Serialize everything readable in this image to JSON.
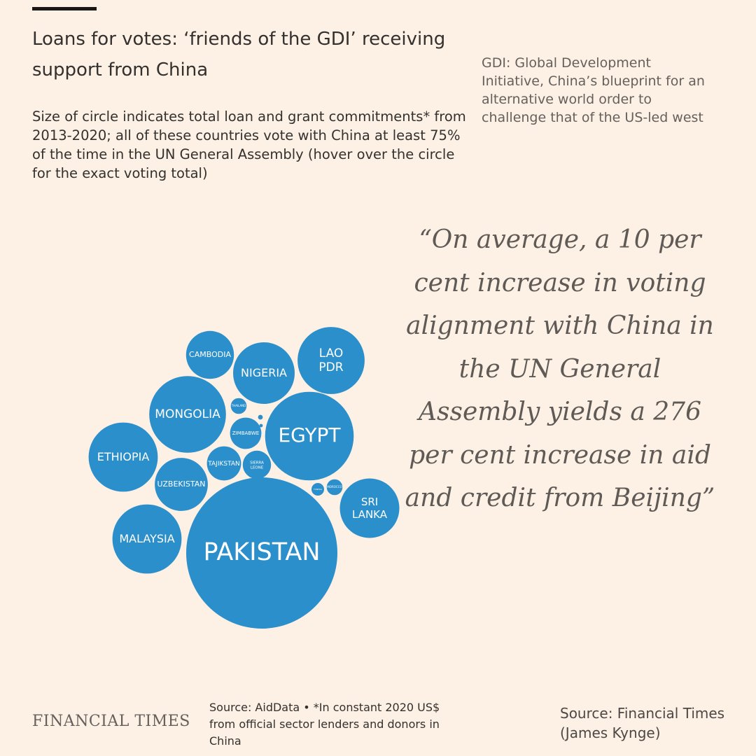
{
  "header": {
    "title": "Loans for votes: ‘friends of the GDI’ receiving support from China",
    "subtitle": "Size of circle indicates total loan and grant commitments* from 2013-2020; all of these countries vote with China at least 75% of the time in the UN General Assembly (hover over the circle for the exact voting total)"
  },
  "gdi_note": "GDI: Global Development Initiative, China’s blueprint for an alternative world order to challenge that of the US-led west",
  "quote": "“On average, a 10 per cent increase in voting alignment with China in the UN General Assembly yields a 276 per cent increase in aid and credit from Beijing”",
  "footer": {
    "logo": "FINANCIAL TIMES",
    "chart_source": "Source: AidData • *In constant 2020 US$ from official sector lenders and donors in China",
    "credit": "Source: Financial Times (James Kynge)"
  },
  "colors": {
    "bubble": "#2b8fcb",
    "background": "#fdf1e5"
  },
  "chart_data": {
    "type": "bubble",
    "size_encoding": "total loan and grant commitments (relative area)",
    "bubbles": [
      {
        "label": "PAKISTAN",
        "value": 100
      },
      {
        "label": "EGYPT",
        "value": 34.4
      },
      {
        "label": "MONGOLIA",
        "value": 25.7
      },
      {
        "label": "MALAYSIA",
        "value": 20.9
      },
      {
        "label": "ETHIOPIA",
        "value": 20.9
      },
      {
        "label": "LAO PDR",
        "value": 19.7
      },
      {
        "label": "NIGERIA",
        "value": 16.6
      },
      {
        "label": "SRI LANKA",
        "value": 15.5
      },
      {
        "label": "UZBEKISTAN",
        "value": 12.3
      },
      {
        "label": "CAMBODIA",
        "value": 10.0
      },
      {
        "label": "TAJIKSTAN",
        "value": 5.1
      },
      {
        "label": "ZIMBABWE",
        "value": 4.3
      },
      {
        "label": "SIERRA LEONE",
        "value": 3.5
      },
      {
        "label": "THAILAND",
        "value": 1.1
      },
      {
        "label": "MOROCCO",
        "value": 1.1
      },
      {
        "label": "TUNISIA",
        "value": 0.7
      },
      {
        "label": "",
        "value": 0.1
      },
      {
        "label": "",
        "value": 0.05
      }
    ]
  }
}
